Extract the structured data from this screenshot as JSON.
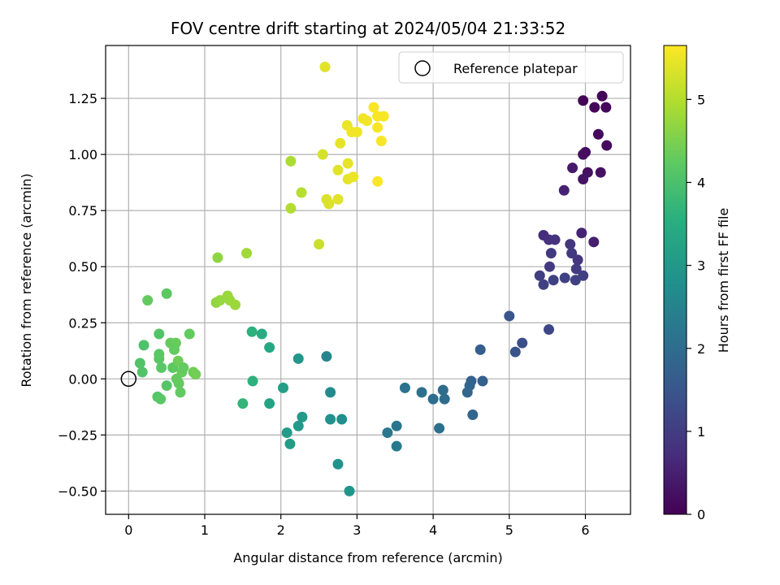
{
  "chart_data": {
    "type": "scatter",
    "title": "FOV centre drift starting at 2024/05/04 21:33:52",
    "xlabel": "Angular distance from reference (arcmin)",
    "ylabel": "Rotation from reference (arcmin)",
    "xlim": [
      -0.3,
      6.6
    ],
    "ylim": [
      -0.6,
      1.48
    ],
    "xticks": [
      0,
      1,
      2,
      3,
      4,
      5,
      6
    ],
    "yticks": [
      -0.5,
      -0.25,
      0.0,
      0.25,
      0.5,
      0.75,
      1.0,
      1.25
    ],
    "xtick_labels": [
      "0",
      "1",
      "2",
      "3",
      "4",
      "5",
      "6"
    ],
    "ytick_labels": [
      "−0.50",
      "−0.25",
      "0.00",
      "0.25",
      "0.50",
      "0.75",
      "1.00",
      "1.25"
    ],
    "grid": true,
    "colormap": "viridis",
    "colorbar": {
      "label": "Hours from first FF file",
      "range": [
        0,
        5.65
      ],
      "ticks": [
        0,
        1,
        2,
        3,
        4,
        5
      ],
      "tick_labels": [
        "0",
        "1",
        "2",
        "3",
        "4",
        "5"
      ]
    },
    "legend": {
      "placement": "top-right",
      "entries": [
        {
          "label": "Reference platepar",
          "marker": "open-circle"
        }
      ]
    },
    "reference_point": {
      "x": 0,
      "y": 0
    },
    "series": [
      {
        "points": [
          {
            "x": 5.97,
            "y": 1.24,
            "c": 0.05
          },
          {
            "x": 6.22,
            "y": 1.26,
            "c": 0.08
          },
          {
            "x": 6.12,
            "y": 1.21,
            "c": 0.1
          },
          {
            "x": 6.27,
            "y": 1.21,
            "c": 0.12
          },
          {
            "x": 6.17,
            "y": 1.09,
            "c": 0.15
          },
          {
            "x": 6.28,
            "y": 1.04,
            "c": 0.18
          },
          {
            "x": 6.0,
            "y": 1.01,
            "c": 0.2
          },
          {
            "x": 5.97,
            "y": 1.0,
            "c": 0.22
          },
          {
            "x": 6.03,
            "y": 0.92,
            "c": 0.25
          },
          {
            "x": 6.2,
            "y": 0.92,
            "c": 0.28
          },
          {
            "x": 5.97,
            "y": 0.89,
            "c": 0.3
          },
          {
            "x": 5.83,
            "y": 0.94,
            "c": 0.4
          },
          {
            "x": 5.72,
            "y": 0.84,
            "c": 0.55
          },
          {
            "x": 5.95,
            "y": 0.65,
            "c": 0.55
          },
          {
            "x": 6.11,
            "y": 0.61,
            "c": 0.5
          },
          {
            "x": 5.45,
            "y": 0.64,
            "c": 0.75
          },
          {
            "x": 5.52,
            "y": 0.62,
            "c": 0.8
          },
          {
            "x": 5.6,
            "y": 0.62,
            "c": 0.85
          },
          {
            "x": 5.8,
            "y": 0.6,
            "c": 0.9
          },
          {
            "x": 5.9,
            "y": 0.53,
            "c": 0.9
          },
          {
            "x": 5.55,
            "y": 0.56,
            "c": 0.95
          },
          {
            "x": 5.82,
            "y": 0.56,
            "c": 0.95
          },
          {
            "x": 5.53,
            "y": 0.5,
            "c": 1.0
          },
          {
            "x": 5.88,
            "y": 0.49,
            "c": 1.0
          },
          {
            "x": 5.4,
            "y": 0.46,
            "c": 1.05
          },
          {
            "x": 5.97,
            "y": 0.46,
            "c": 1.05
          },
          {
            "x": 5.73,
            "y": 0.45,
            "c": 1.1
          },
          {
            "x": 5.45,
            "y": 0.42,
            "c": 1.1
          },
          {
            "x": 5.58,
            "y": 0.44,
            "c": 1.1
          },
          {
            "x": 5.87,
            "y": 0.44,
            "c": 1.1
          },
          {
            "x": 5.52,
            "y": 0.22,
            "c": 1.2
          },
          {
            "x": 5.17,
            "y": 0.16,
            "c": 1.35
          },
          {
            "x": 5.08,
            "y": 0.12,
            "c": 1.45
          },
          {
            "x": 5.0,
            "y": 0.28,
            "c": 1.5
          },
          {
            "x": 4.62,
            "y": 0.13,
            "c": 1.7
          },
          {
            "x": 4.65,
            "y": -0.01,
            "c": 1.75
          },
          {
            "x": 4.5,
            "y": -0.01,
            "c": 1.8
          },
          {
            "x": 4.48,
            "y": -0.03,
            "c": 1.85
          },
          {
            "x": 4.45,
            "y": -0.06,
            "c": 1.9
          },
          {
            "x": 4.52,
            "y": -0.16,
            "c": 1.85
          },
          {
            "x": 4.13,
            "y": -0.05,
            "c": 2.0
          },
          {
            "x": 4.15,
            "y": -0.09,
            "c": 2.0
          },
          {
            "x": 4.0,
            "y": -0.09,
            "c": 2.05
          },
          {
            "x": 3.85,
            "y": -0.06,
            "c": 2.1
          },
          {
            "x": 4.08,
            "y": -0.22,
            "c": 2.1
          },
          {
            "x": 3.63,
            "y": -0.04,
            "c": 2.15
          },
          {
            "x": 3.52,
            "y": -0.21,
            "c": 2.2
          },
          {
            "x": 3.4,
            "y": -0.24,
            "c": 2.25
          },
          {
            "x": 3.52,
            "y": -0.3,
            "c": 2.3
          },
          {
            "x": 2.6,
            "y": 0.1,
            "c": 2.6
          },
          {
            "x": 2.65,
            "y": -0.06,
            "c": 2.7
          },
          {
            "x": 2.8,
            "y": -0.18,
            "c": 2.8
          },
          {
            "x": 2.65,
            "y": -0.18,
            "c": 2.85
          },
          {
            "x": 2.75,
            "y": -0.38,
            "c": 2.9
          },
          {
            "x": 2.9,
            "y": -0.5,
            "c": 2.95
          },
          {
            "x": 2.23,
            "y": 0.09,
            "c": 3.0
          },
          {
            "x": 2.28,
            "y": -0.17,
            "c": 3.05
          },
          {
            "x": 2.23,
            "y": -0.21,
            "c": 3.05
          },
          {
            "x": 2.08,
            "y": -0.24,
            "c": 3.1
          },
          {
            "x": 2.12,
            "y": -0.29,
            "c": 3.15
          },
          {
            "x": 2.03,
            "y": -0.04,
            "c": 3.2
          },
          {
            "x": 1.85,
            "y": -0.11,
            "c": 3.3
          },
          {
            "x": 1.85,
            "y": 0.14,
            "c": 3.4
          },
          {
            "x": 1.75,
            "y": 0.2,
            "c": 3.5
          },
          {
            "x": 1.62,
            "y": 0.21,
            "c": 3.6
          },
          {
            "x": 1.63,
            "y": -0.01,
            "c": 3.6
          },
          {
            "x": 1.5,
            "y": -0.11,
            "c": 3.7
          },
          {
            "x": 0.15,
            "y": 0.07,
            "c": 4.1
          },
          {
            "x": 0.18,
            "y": 0.03,
            "c": 4.1
          },
          {
            "x": 0.2,
            "y": 0.15,
            "c": 4.05
          },
          {
            "x": 0.25,
            "y": 0.35,
            "c": 4.3
          },
          {
            "x": 0.5,
            "y": 0.38,
            "c": 4.25
          },
          {
            "x": 0.4,
            "y": 0.2,
            "c": 4.1
          },
          {
            "x": 0.4,
            "y": 0.11,
            "c": 4.2
          },
          {
            "x": 0.4,
            "y": 0.09,
            "c": 4.2
          },
          {
            "x": 0.43,
            "y": 0.05,
            "c": 4.2
          },
          {
            "x": 0.5,
            "y": -0.03,
            "c": 4.15
          },
          {
            "x": 0.38,
            "y": -0.08,
            "c": 4.15
          },
          {
            "x": 0.42,
            "y": -0.09,
            "c": 4.2
          },
          {
            "x": 0.55,
            "y": 0.16,
            "c": 4.3
          },
          {
            "x": 0.6,
            "y": 0.15,
            "c": 4.3
          },
          {
            "x": 0.62,
            "y": 0.16,
            "c": 4.35
          },
          {
            "x": 0.6,
            "y": 0.13,
            "c": 4.3
          },
          {
            "x": 0.58,
            "y": 0.05,
            "c": 4.25
          },
          {
            "x": 0.65,
            "y": 0.08,
            "c": 4.4
          },
          {
            "x": 0.63,
            "y": 0.0,
            "c": 4.3
          },
          {
            "x": 0.66,
            "y": -0.02,
            "c": 4.3
          },
          {
            "x": 0.7,
            "y": 0.03,
            "c": 4.35
          },
          {
            "x": 0.72,
            "y": 0.05,
            "c": 4.3
          },
          {
            "x": 0.68,
            "y": -0.06,
            "c": 4.3
          },
          {
            "x": 0.8,
            "y": 0.2,
            "c": 4.3
          },
          {
            "x": 0.85,
            "y": 0.03,
            "c": 4.4
          },
          {
            "x": 0.88,
            "y": 0.02,
            "c": 4.45
          },
          {
            "x": 1.17,
            "y": 0.54,
            "c": 4.7
          },
          {
            "x": 1.15,
            "y": 0.34,
            "c": 4.7
          },
          {
            "x": 1.2,
            "y": 0.35,
            "c": 4.75
          },
          {
            "x": 1.3,
            "y": 0.37,
            "c": 4.8
          },
          {
            "x": 1.33,
            "y": 0.35,
            "c": 4.8
          },
          {
            "x": 1.4,
            "y": 0.33,
            "c": 4.8
          },
          {
            "x": 1.55,
            "y": 0.56,
            "c": 4.85
          },
          {
            "x": 2.13,
            "y": 0.97,
            "c": 4.95
          },
          {
            "x": 2.13,
            "y": 0.76,
            "c": 5.0
          },
          {
            "x": 2.27,
            "y": 0.83,
            "c": 5.05
          },
          {
            "x": 2.5,
            "y": 0.6,
            "c": 5.2
          },
          {
            "x": 2.55,
            "y": 1.0,
            "c": 5.3
          },
          {
            "x": 2.6,
            "y": 0.8,
            "c": 5.35
          },
          {
            "x": 2.63,
            "y": 0.78,
            "c": 5.35
          },
          {
            "x": 2.75,
            "y": 0.8,
            "c": 5.4
          },
          {
            "x": 2.75,
            "y": 0.93,
            "c": 5.4
          },
          {
            "x": 2.78,
            "y": 1.05,
            "c": 5.45
          },
          {
            "x": 2.88,
            "y": 0.89,
            "c": 5.45
          },
          {
            "x": 2.88,
            "y": 0.96,
            "c": 5.45
          },
          {
            "x": 2.95,
            "y": 0.9,
            "c": 5.5
          },
          {
            "x": 2.87,
            "y": 1.13,
            "c": 5.5
          },
          {
            "x": 2.93,
            "y": 1.1,
            "c": 5.55
          },
          {
            "x": 3.0,
            "y": 1.1,
            "c": 5.55
          },
          {
            "x": 3.08,
            "y": 1.16,
            "c": 5.55
          },
          {
            "x": 3.13,
            "y": 1.15,
            "c": 5.55
          },
          {
            "x": 3.22,
            "y": 1.21,
            "c": 5.6
          },
          {
            "x": 3.27,
            "y": 1.17,
            "c": 5.6
          },
          {
            "x": 3.35,
            "y": 1.17,
            "c": 5.6
          },
          {
            "x": 3.27,
            "y": 1.12,
            "c": 5.6
          },
          {
            "x": 3.32,
            "y": 1.06,
            "c": 5.6
          },
          {
            "x": 3.27,
            "y": 0.88,
            "c": 5.6
          },
          {
            "x": 2.58,
            "y": 1.39,
            "c": 5.4
          }
        ]
      }
    ]
  }
}
